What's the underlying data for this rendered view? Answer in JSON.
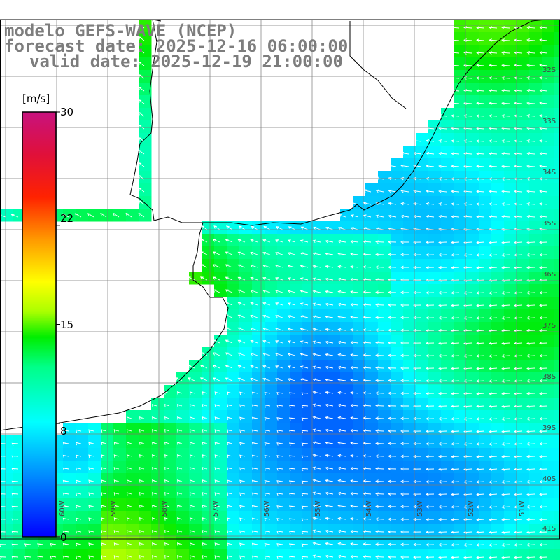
{
  "header": {
    "line1": "modelo GEFS-WAVE (NCEP)",
    "line2": "forecast date: 2025-12-16 06:00:00",
    "line3": "valid date: 2025-12-19 21:00:00"
  },
  "colorbar": {
    "unit": "[m/s]",
    "ticks": [
      "30",
      "22",
      "15",
      "8",
      "0"
    ],
    "min": 0,
    "max": 30
  },
  "grid": {
    "lat_labels": [
      "32S",
      "33S",
      "34S",
      "35S",
      "36S",
      "37S",
      "38S",
      "39S",
      "40S",
      "41S"
    ],
    "lon_labels": [
      "60W",
      "59W",
      "58W",
      "57W",
      "56W",
      "55W",
      "54W",
      "53W",
      "52W",
      "51W"
    ]
  },
  "colors": {
    "land": "#ffffff",
    "coastline": "#000000",
    "grid_line": "#888888",
    "arrow": "#ffffff",
    "title": "#7d7d7d"
  }
}
